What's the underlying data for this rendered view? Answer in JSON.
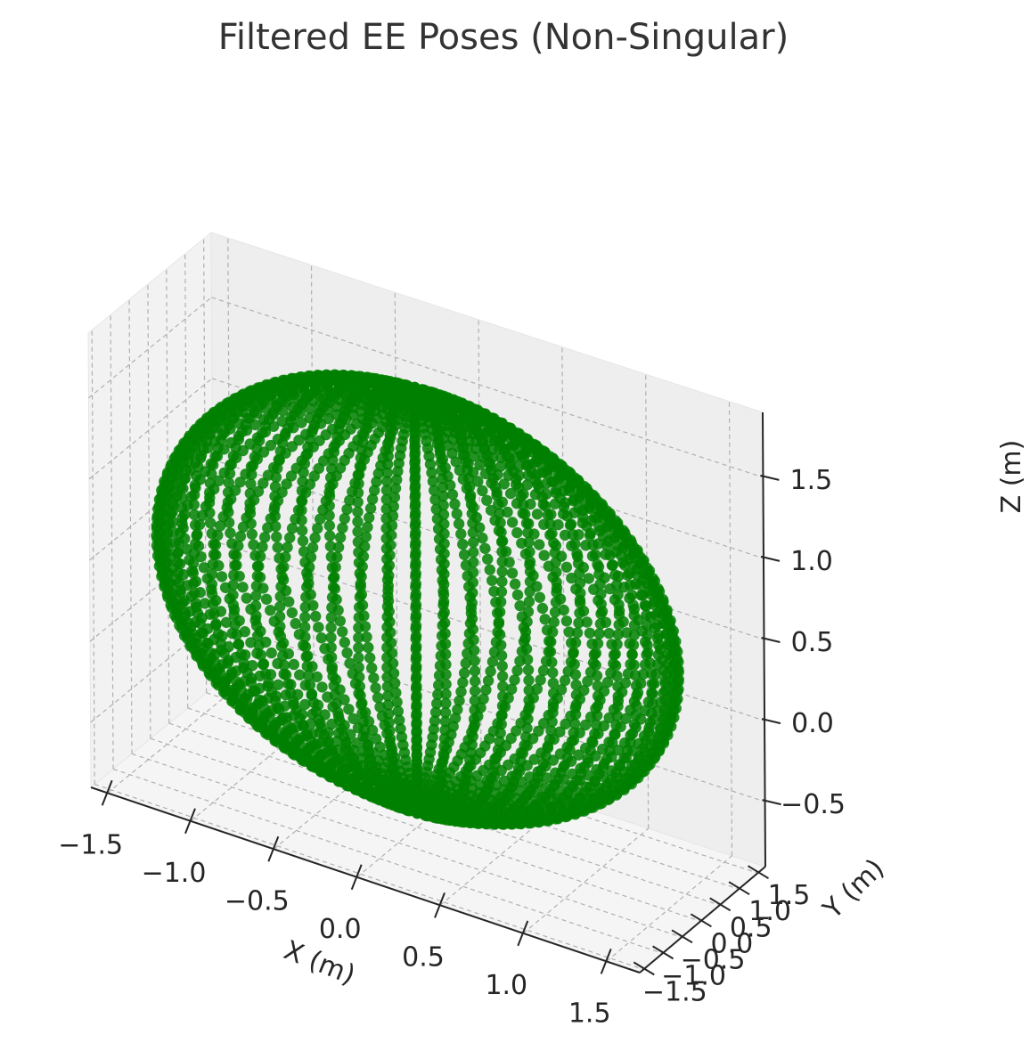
{
  "chart_data": {
    "type": "scatter",
    "projection": "3d",
    "title": "Filtered EE Poses (Non-Singular)",
    "xlabel": "X (m)",
    "ylabel": "Y (m)",
    "zlabel": "Z (m)",
    "xlim": [
      -1.6,
      1.7
    ],
    "ylim": [
      -1.6,
      1.7
    ],
    "zlim": [
      -0.9,
      1.9
    ],
    "x_ticks": [
      "−1.5",
      "−1.0",
      "−0.5",
      "0.0",
      "0.5",
      "1.0",
      "1.5"
    ],
    "y_ticks": [
      "−1.5",
      "−1.0",
      "−0.5",
      "0.0",
      "0.5",
      "1.0",
      "1.5"
    ],
    "z_ticks": [
      "−0.5",
      "0.0",
      "0.5",
      "1.0",
      "1.5"
    ],
    "grid": true,
    "grid_style": "dashed",
    "legend": "none",
    "marker": "dot",
    "colors": {
      "points": "#008000",
      "pane_left": "#f2f2f2",
      "pane_back": "#eeeeee",
      "pane_floor": "#f5f5f5",
      "grid": "#b0b0b0",
      "axis": "#262626",
      "text": "#262626",
      "title": "#333333"
    },
    "series": [
      {
        "shape": "toroidal reachable workspace of end-effector poses (sampled shell)",
        "center": {
          "x": 0.0,
          "y": 0.0,
          "z": 0.5
        },
        "radius_x": 1.55,
        "radius_y": 1.55,
        "radius_z": 1.25,
        "z_min": -0.75,
        "z_max": 1.75
      }
    ]
  }
}
